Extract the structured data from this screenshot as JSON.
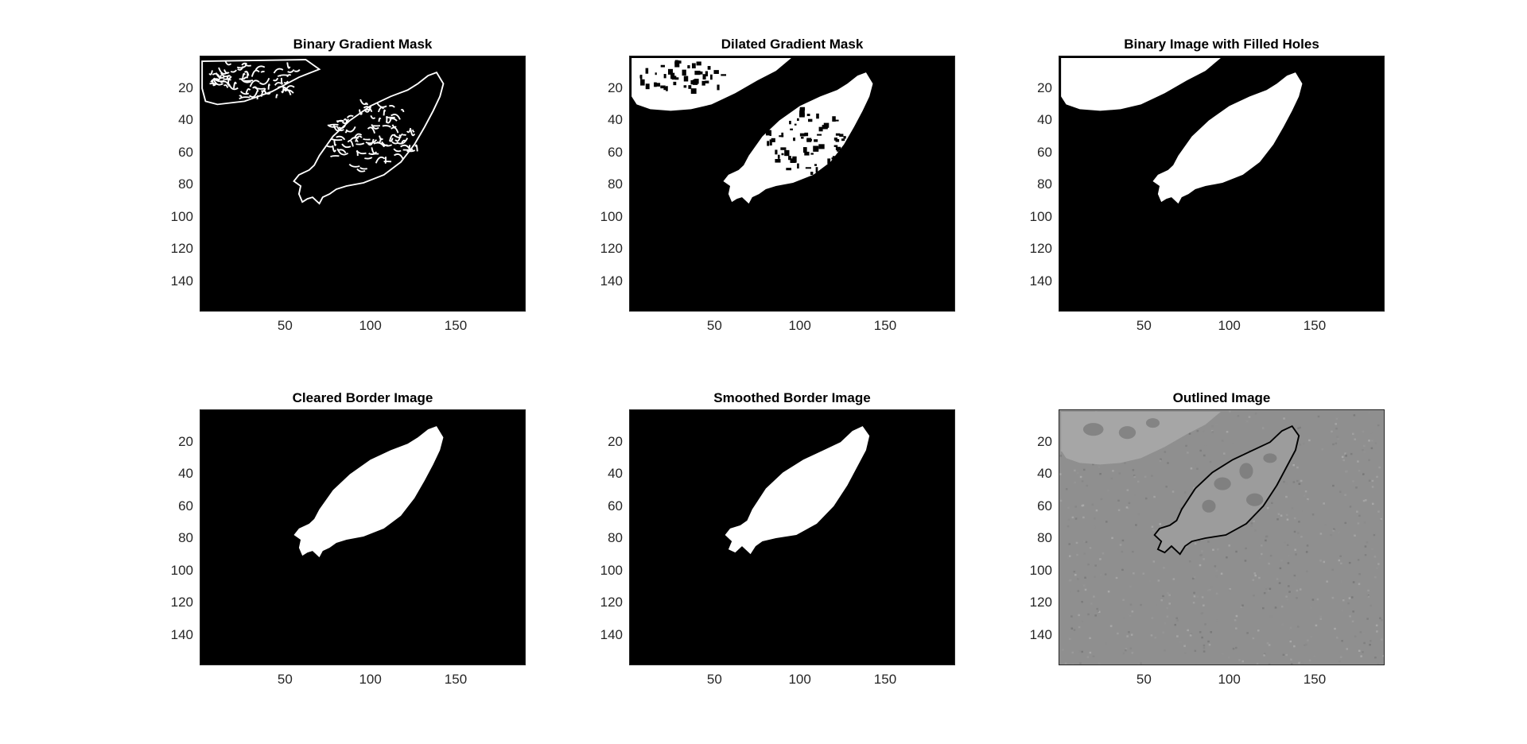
{
  "figure": {
    "panels": [
      {
        "title": "Binary Gradient Mask",
        "kind": "edges",
        "background": "#000000"
      },
      {
        "title": "Dilated Gradient Mask",
        "kind": "dilated",
        "background": "#000000"
      },
      {
        "title": "Binary Image with Filled Holes",
        "kind": "filled",
        "background": "#000000"
      },
      {
        "title": "Cleared Border Image",
        "kind": "cleared",
        "background": "#000000"
      },
      {
        "title": "Smoothed Border Image",
        "kind": "smoothed",
        "background": "#000000"
      },
      {
        "title": "Outlined Image",
        "kind": "outlined",
        "background": "#8f8f8f"
      }
    ],
    "y_ticks": [
      "20",
      "40",
      "60",
      "80",
      "100",
      "120",
      "140"
    ],
    "x_ticks": [
      "50",
      "100",
      "150"
    ],
    "image_size": {
      "width": 191,
      "height": 159
    },
    "colors": {
      "foreground": "#ffffff",
      "mask_background": "#000000",
      "outline": "#000000",
      "gray_background": "#8f8f8f"
    }
  }
}
